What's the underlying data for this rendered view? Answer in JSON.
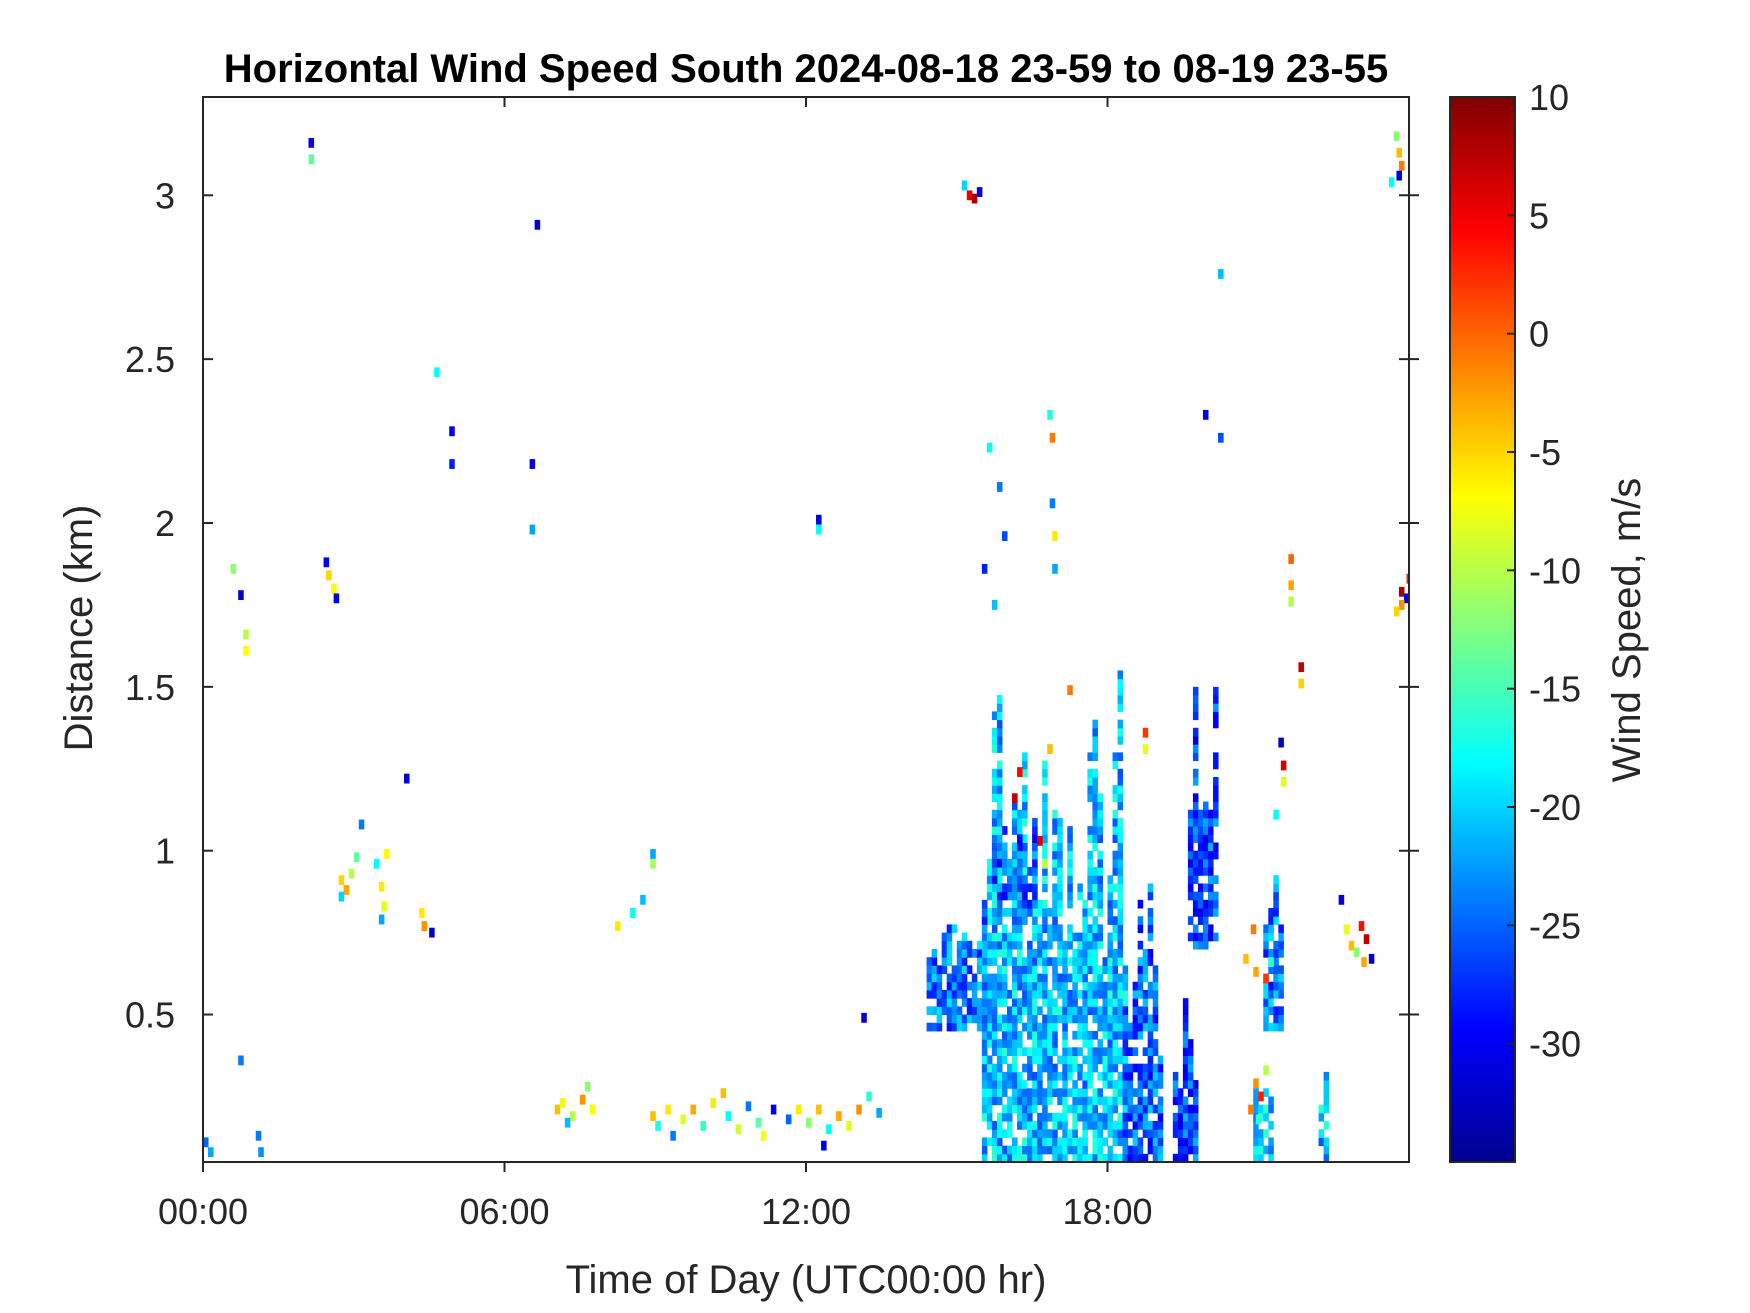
{
  "chart_data": {
    "type": "heatmap",
    "title": "Horizontal Wind Speed South 2024-08-18 23-59 to 08-19 23-55",
    "xlabel": "Time of Day (UTC00:00 hr)",
    "ylabel": "Distance (km)",
    "colorbar_label": "Wind Speed, m/s",
    "x_unit": "hours",
    "xlim": [
      0,
      24
    ],
    "ylim": [
      0.05,
      3.3
    ],
    "clim": [
      -35,
      10
    ],
    "colormap": "jet",
    "x_ticks": [
      {
        "value": 0,
        "label": "00:00"
      },
      {
        "value": 6,
        "label": "06:00"
      },
      {
        "value": 12,
        "label": "12:00"
      },
      {
        "value": 18,
        "label": "18:00"
      }
    ],
    "y_ticks": [
      {
        "value": 0.5,
        "label": "0.5"
      },
      {
        "value": 1,
        "label": "1"
      },
      {
        "value": 1.5,
        "label": "1.5"
      },
      {
        "value": 2,
        "label": "2"
      },
      {
        "value": 2.5,
        "label": "2.5"
      },
      {
        "value": 3,
        "label": "3"
      }
    ],
    "colorbar_ticks": [
      {
        "value": 10,
        "label": "10"
      },
      {
        "value": 5,
        "label": "5"
      },
      {
        "value": 0,
        "label": "0"
      },
      {
        "value": -5,
        "label": "-5"
      },
      {
        "value": -10,
        "label": "-10"
      },
      {
        "value": -15,
        "label": "-15"
      },
      {
        "value": -20,
        "label": "-20"
      },
      {
        "value": -25,
        "label": "-25"
      },
      {
        "value": -30,
        "label": "-30"
      }
    ],
    "cell_size": {
      "dt_hours": 0.1,
      "dy_km": 0.025
    },
    "cells": [
      {
        "t": 0.0,
        "y": 0.1,
        "v": -25
      },
      {
        "t": 0.1,
        "y": 0.07,
        "v": -22
      },
      {
        "t": 0.7,
        "y": 0.35,
        "v": -24
      },
      {
        "t": 1.05,
        "y": 0.12,
        "v": -24
      },
      {
        "t": 1.1,
        "y": 0.07,
        "v": -23
      },
      {
        "t": 0.55,
        "y": 1.85,
        "v": -12
      },
      {
        "t": 0.7,
        "y": 1.77,
        "v": -31
      },
      {
        "t": 0.8,
        "y": 1.65,
        "v": -10
      },
      {
        "t": 0.8,
        "y": 1.6,
        "v": -7
      },
      {
        "t": 2.1,
        "y": 3.15,
        "v": -30
      },
      {
        "t": 2.1,
        "y": 3.1,
        "v": -14
      },
      {
        "t": 2.4,
        "y": 1.87,
        "v": -30
      },
      {
        "t": 2.45,
        "y": 1.83,
        "v": -5
      },
      {
        "t": 2.55,
        "y": 1.79,
        "v": -7
      },
      {
        "t": 2.6,
        "y": 1.76,
        "v": -31
      },
      {
        "t": 2.7,
        "y": 0.9,
        "v": -5
      },
      {
        "t": 2.8,
        "y": 0.87,
        "v": -3
      },
      {
        "t": 2.7,
        "y": 0.85,
        "v": -20
      },
      {
        "t": 2.9,
        "y": 0.92,
        "v": -10
      },
      {
        "t": 3.0,
        "y": 0.97,
        "v": -14
      },
      {
        "t": 3.1,
        "y": 1.07,
        "v": -24
      },
      {
        "t": 3.4,
        "y": 0.95,
        "v": -18
      },
      {
        "t": 3.5,
        "y": 0.88,
        "v": -6
      },
      {
        "t": 3.55,
        "y": 0.82,
        "v": -8
      },
      {
        "t": 3.6,
        "y": 0.98,
        "v": -7
      },
      {
        "t": 3.5,
        "y": 0.78,
        "v": -22
      },
      {
        "t": 4.0,
        "y": 1.21,
        "v": -31
      },
      {
        "t": 4.3,
        "y": 0.8,
        "v": -6
      },
      {
        "t": 4.35,
        "y": 0.76,
        "v": -2
      },
      {
        "t": 4.5,
        "y": 0.74,
        "v": -31
      },
      {
        "t": 4.6,
        "y": 2.45,
        "v": -18
      },
      {
        "t": 4.9,
        "y": 2.27,
        "v": -30
      },
      {
        "t": 4.9,
        "y": 2.17,
        "v": -28
      },
      {
        "t": 6.5,
        "y": 2.17,
        "v": -31
      },
      {
        "t": 6.5,
        "y": 1.97,
        "v": -22
      },
      {
        "t": 6.6,
        "y": 2.9,
        "v": -31
      },
      {
        "t": 7.0,
        "y": 0.2,
        "v": -4
      },
      {
        "t": 7.1,
        "y": 0.22,
        "v": -8
      },
      {
        "t": 7.3,
        "y": 0.18,
        "v": -10
      },
      {
        "t": 7.5,
        "y": 0.23,
        "v": -2
      },
      {
        "t": 7.6,
        "y": 0.27,
        "v": -12
      },
      {
        "t": 7.7,
        "y": 0.2,
        "v": -7
      },
      {
        "t": 7.2,
        "y": 0.16,
        "v": -21
      },
      {
        "t": 8.2,
        "y": 0.76,
        "v": -6
      },
      {
        "t": 8.5,
        "y": 0.8,
        "v": -18
      },
      {
        "t": 8.7,
        "y": 0.84,
        "v": -21
      },
      {
        "t": 8.9,
        "y": 0.98,
        "v": -22
      },
      {
        "t": 8.9,
        "y": 0.95,
        "v": -11
      },
      {
        "t": 8.9,
        "y": 0.18,
        "v": -4
      },
      {
        "t": 9.0,
        "y": 0.15,
        "v": -17
      },
      {
        "t": 9.2,
        "y": 0.2,
        "v": -6
      },
      {
        "t": 9.3,
        "y": 0.12,
        "v": -24
      },
      {
        "t": 9.5,
        "y": 0.17,
        "v": -8
      },
      {
        "t": 9.7,
        "y": 0.2,
        "v": -3
      },
      {
        "t": 9.9,
        "y": 0.15,
        "v": -16
      },
      {
        "t": 10.1,
        "y": 0.22,
        "v": -6
      },
      {
        "t": 10.3,
        "y": 0.25,
        "v": -4
      },
      {
        "t": 10.4,
        "y": 0.18,
        "v": -18
      },
      {
        "t": 10.6,
        "y": 0.14,
        "v": -9
      },
      {
        "t": 10.8,
        "y": 0.21,
        "v": -24
      },
      {
        "t": 11.0,
        "y": 0.16,
        "v": -14
      },
      {
        "t": 11.1,
        "y": 0.12,
        "v": -7
      },
      {
        "t": 11.3,
        "y": 0.2,
        "v": -30
      },
      {
        "t": 11.6,
        "y": 0.17,
        "v": -25
      },
      {
        "t": 11.8,
        "y": 0.2,
        "v": -6
      },
      {
        "t": 12.0,
        "y": 0.16,
        "v": -12
      },
      {
        "t": 12.2,
        "y": 0.2,
        "v": -4
      },
      {
        "t": 12.4,
        "y": 0.14,
        "v": -18
      },
      {
        "t": 12.6,
        "y": 0.18,
        "v": -3
      },
      {
        "t": 12.8,
        "y": 0.15,
        "v": -8
      },
      {
        "t": 13.0,
        "y": 0.2,
        "v": -2
      },
      {
        "t": 13.2,
        "y": 0.24,
        "v": -16
      },
      {
        "t": 13.4,
        "y": 0.19,
        "v": -22
      },
      {
        "t": 12.3,
        "y": 0.09,
        "v": -30
      },
      {
        "t": 12.2,
        "y": 2.0,
        "v": -31
      },
      {
        "t": 12.2,
        "y": 1.97,
        "v": -18
      },
      {
        "t": 13.1,
        "y": 0.48,
        "v": -31
      },
      {
        "t": 15.1,
        "y": 3.02,
        "v": -20
      },
      {
        "t": 15.2,
        "y": 2.99,
        "v": 5
      },
      {
        "t": 15.3,
        "y": 2.98,
        "v": 8
      },
      {
        "t": 15.4,
        "y": 3.0,
        "v": -30
      },
      {
        "t": 15.6,
        "y": 2.22,
        "v": -18
      },
      {
        "t": 15.8,
        "y": 2.1,
        "v": -24
      },
      {
        "t": 15.9,
        "y": 1.95,
        "v": -26
      },
      {
        "t": 15.5,
        "y": 1.85,
        "v": -28
      },
      {
        "t": 15.7,
        "y": 1.74,
        "v": -21
      },
      {
        "t": 16.8,
        "y": 2.32,
        "v": -17
      },
      {
        "t": 16.85,
        "y": 2.25,
        "v": -1
      },
      {
        "t": 16.85,
        "y": 2.05,
        "v": -24
      },
      {
        "t": 16.9,
        "y": 1.95,
        "v": -6
      },
      {
        "t": 16.9,
        "y": 1.85,
        "v": -22
      },
      {
        "t": 16.2,
        "y": 1.23,
        "v": 4
      },
      {
        "t": 16.1,
        "y": 1.15,
        "v": 7
      },
      {
        "t": 16.6,
        "y": 1.02,
        "v": 6
      },
      {
        "t": 16.7,
        "y": 0.95,
        "v": -10
      },
      {
        "t": 17.2,
        "y": 1.48,
        "v": -1
      },
      {
        "t": 16.8,
        "y": 1.3,
        "v": -4
      },
      {
        "t": 18.7,
        "y": 1.35,
        "v": 2
      },
      {
        "t": 18.7,
        "y": 1.3,
        "v": -8
      },
      {
        "t": 19.9,
        "y": 2.32,
        "v": -30
      },
      {
        "t": 20.2,
        "y": 2.25,
        "v": -26
      },
      {
        "t": 20.2,
        "y": 2.75,
        "v": -21
      },
      {
        "t": 21.6,
        "y": 1.88,
        "v": 0
      },
      {
        "t": 21.6,
        "y": 1.8,
        "v": -3
      },
      {
        "t": 21.6,
        "y": 1.75,
        "v": -10
      },
      {
        "t": 21.8,
        "y": 1.55,
        "v": 7
      },
      {
        "t": 21.8,
        "y": 1.5,
        "v": -5
      },
      {
        "t": 21.45,
        "y": 1.25,
        "v": 6
      },
      {
        "t": 21.45,
        "y": 1.2,
        "v": -8
      },
      {
        "t": 21.4,
        "y": 1.32,
        "v": -32
      },
      {
        "t": 21.3,
        "y": 1.1,
        "v": -18
      },
      {
        "t": 20.85,
        "y": 0.75,
        "v": -1
      },
      {
        "t": 20.9,
        "y": 0.62,
        "v": -3
      },
      {
        "t": 21.1,
        "y": 0.6,
        "v": 2
      },
      {
        "t": 21.2,
        "y": 0.65,
        "v": -16
      },
      {
        "t": 20.7,
        "y": 0.66,
        "v": -4
      },
      {
        "t": 20.9,
        "y": 0.28,
        "v": -2
      },
      {
        "t": 21.0,
        "y": 0.24,
        "v": 3
      },
      {
        "t": 20.8,
        "y": 0.2,
        "v": -1
      },
      {
        "t": 20.95,
        "y": 0.17,
        "v": -16
      },
      {
        "t": 21.1,
        "y": 0.32,
        "v": -10
      },
      {
        "t": 22.6,
        "y": 0.84,
        "v": -31
      },
      {
        "t": 22.7,
        "y": 0.75,
        "v": -8
      },
      {
        "t": 22.8,
        "y": 0.7,
        "v": -4
      },
      {
        "t": 22.9,
        "y": 0.68,
        "v": -12
      },
      {
        "t": 23.0,
        "y": 0.76,
        "v": 4
      },
      {
        "t": 23.1,
        "y": 0.72,
        "v": 7
      },
      {
        "t": 23.2,
        "y": 0.66,
        "v": -31
      },
      {
        "t": 23.05,
        "y": 0.65,
        "v": -3
      },
      {
        "t": 23.7,
        "y": 3.17,
        "v": -12
      },
      {
        "t": 23.75,
        "y": 3.12,
        "v": -4
      },
      {
        "t": 23.8,
        "y": 3.08,
        "v": -1
      },
      {
        "t": 23.75,
        "y": 3.05,
        "v": -31
      },
      {
        "t": 23.6,
        "y": 3.03,
        "v": -18
      },
      {
        "t": 23.8,
        "y": 1.78,
        "v": 8
      },
      {
        "t": 23.9,
        "y": 1.76,
        "v": -30
      },
      {
        "t": 23.95,
        "y": 1.82,
        "v": 3
      },
      {
        "t": 23.8,
        "y": 1.74,
        "v": -2
      },
      {
        "t": 23.7,
        "y": 1.72,
        "v": -5
      }
    ],
    "regions": [
      {
        "t0": 15.5,
        "t1": 18.4,
        "y0": 0.05,
        "y1": 1.55,
        "v_mean": -21,
        "seed": 7
      },
      {
        "t0": 14.4,
        "t1": 15.5,
        "y0": 0.45,
        "y1": 0.85,
        "v_mean": -24,
        "seed": 11
      },
      {
        "t0": 15.7,
        "t1": 16.6,
        "y0": 0.8,
        "y1": 1.1,
        "v_mean": -25,
        "seed": 13
      },
      {
        "t0": 18.3,
        "t1": 19.1,
        "y0": 0.05,
        "y1": 0.95,
        "v_mean": -25,
        "seed": 17
      },
      {
        "t0": 19.6,
        "t1": 20.2,
        "y0": 0.7,
        "y1": 1.5,
        "v_mean": -26,
        "seed": 19
      },
      {
        "t0": 20.9,
        "t1": 21.3,
        "y0": 0.05,
        "y1": 0.45,
        "v_mean": -20,
        "seed": 23
      },
      {
        "t0": 21.1,
        "t1": 21.5,
        "y0": 0.45,
        "y1": 1.1,
        "v_mean": -24,
        "seed": 29
      },
      {
        "t0": 22.2,
        "t1": 22.4,
        "y0": 0.05,
        "y1": 0.35,
        "v_mean": -21,
        "seed": 31
      },
      {
        "t0": 19.3,
        "t1": 19.8,
        "y0": 0.05,
        "y1": 0.55,
        "v_mean": -26,
        "seed": 37
      }
    ]
  }
}
